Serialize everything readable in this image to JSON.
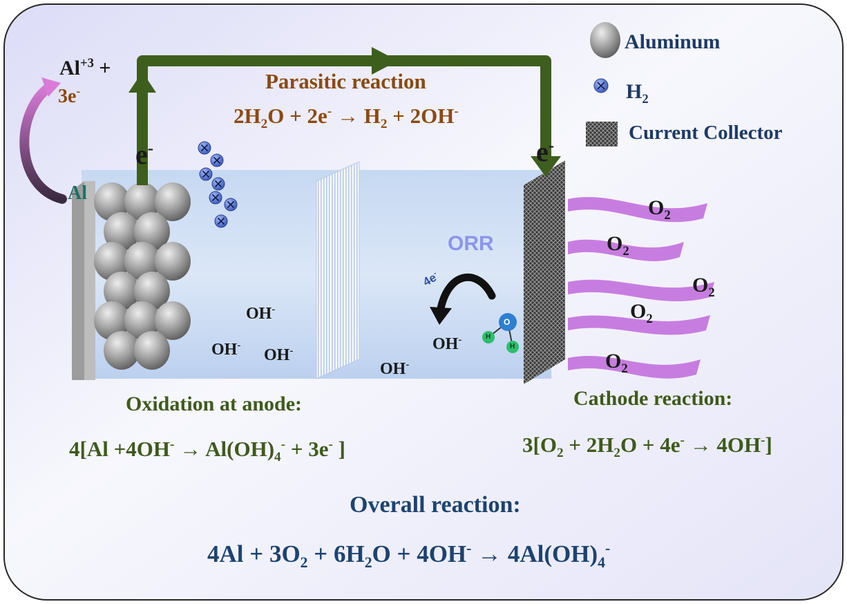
{
  "legend": {
    "aluminum": "Aluminum",
    "h2_base": "H",
    "h2_sub": "2",
    "current_collector": "Current Collector"
  },
  "top_left": {
    "al_base": "Al",
    "al_sup": "+3",
    "plus": " +",
    "electrons_base": "3e",
    "electrons_sup": "-",
    "al_label": "Al"
  },
  "electron_labels": {
    "left_base": "e",
    "left_sup": "-",
    "right_base": "e",
    "right_sup": "-"
  },
  "parasitic": {
    "title": "Parasitic reaction",
    "eq_a": "2H",
    "eq_a_sub": "2",
    "eq_b": "O + 2e",
    "eq_b_sup": "-",
    "eq_c": " → H",
    "eq_c_sub": "2",
    "eq_d": " + 2OH",
    "eq_d_sup": "-"
  },
  "electrolyte": {
    "hydroxide_base": "OH",
    "hydroxide_sup": "-",
    "orr": "ORR",
    "orr_electrons": "4e",
    "orr_electrons_sup": "-",
    "water_o": "O",
    "water_h": "H"
  },
  "oxygen": {
    "base": "O",
    "sub": "2"
  },
  "anode": {
    "title": "Oxidation at anode:",
    "eq_a": "4[Al +4OH",
    "eq_a_sup": "-",
    "eq_b": " → Al(OH)",
    "eq_b_sub": "4",
    "eq_b_sup": "-",
    "eq_c": " + 3e",
    "eq_c_sup": "-",
    "eq_d": " ]"
  },
  "cathode": {
    "title": "Cathode reaction:",
    "eq_a": "3[O",
    "eq_a_sub": "2",
    "eq_b": " + 2H",
    "eq_b_sub": "2",
    "eq_c": "O + 4e",
    "eq_c_sup": "-",
    "eq_d": " → 4OH",
    "eq_d_sup": "-",
    "eq_e": "]"
  },
  "overall": {
    "title": "Overall reaction:",
    "eq_a": "4Al + 3O",
    "eq_a_sub": "2",
    "eq_b": " + 6H",
    "eq_b_sub": "2",
    "eq_c": "O + 4OH",
    "eq_c_sup": "-",
    "eq_d": " → 4Al(OH)",
    "eq_d_sub": "4",
    "eq_d_sup": "-"
  },
  "colors": {
    "wire": "#3e5e1e",
    "anode_text": "#3e5a1c",
    "parasitic_title": "#8a4a12",
    "overall_text": "#1d4370",
    "orr_text": "#8c95e8",
    "oxygen_stream": "#c77de0"
  }
}
